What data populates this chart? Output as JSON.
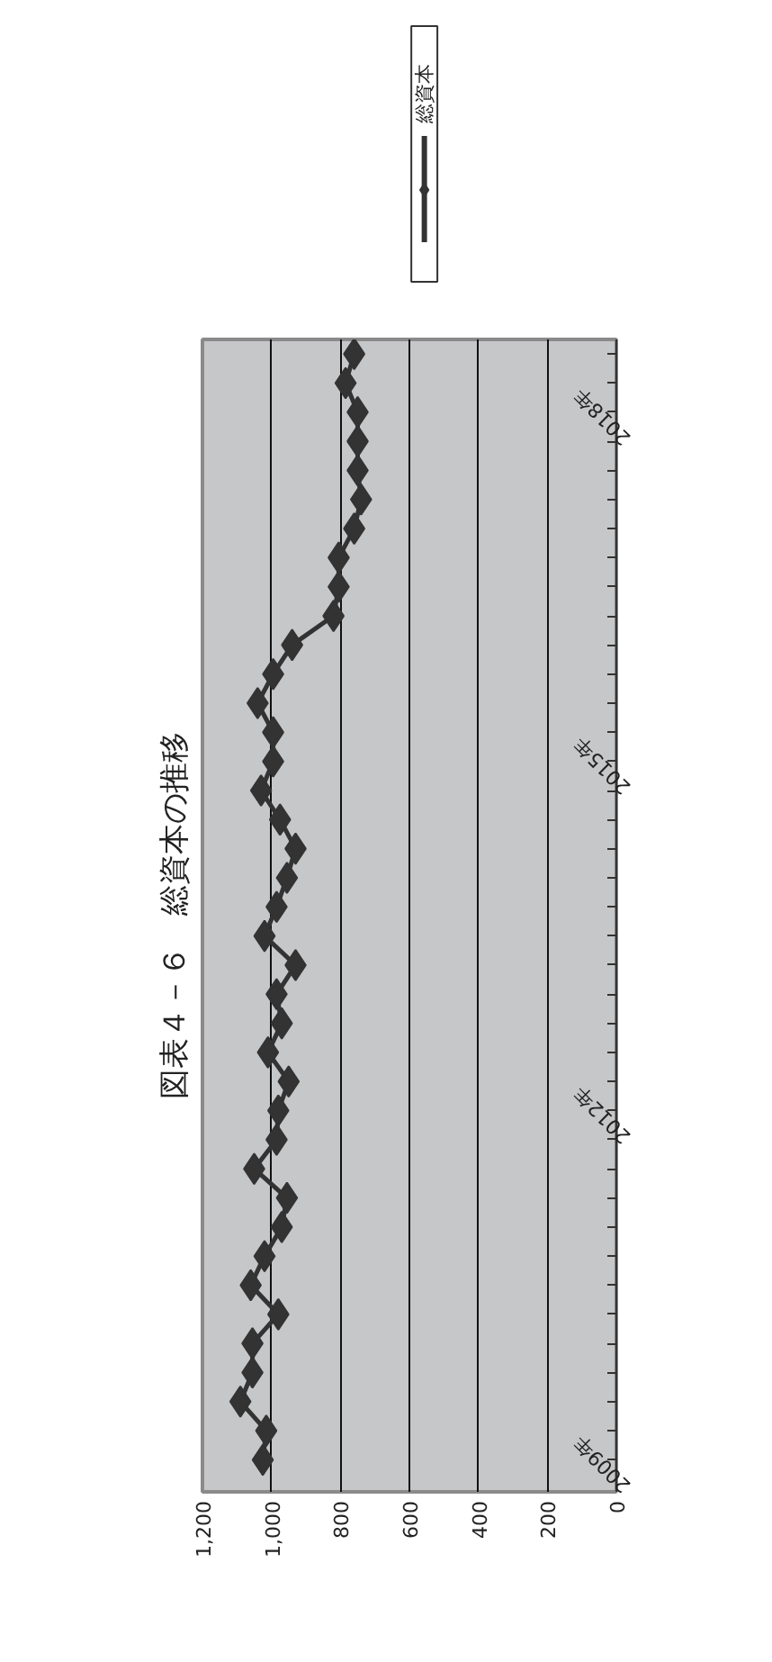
{
  "chart_data": {
    "type": "line",
    "orientation": "horizontal",
    "title": "図表４－６　総資本の推移",
    "categories": [
      null,
      null,
      "2018年",
      null,
      null,
      null,
      null,
      null,
      null,
      null,
      null,
      null,
      null,
      null,
      "2015年",
      null,
      null,
      null,
      null,
      null,
      null,
      null,
      null,
      null,
      null,
      null,
      "2012年",
      null,
      null,
      null,
      null,
      null,
      null,
      null,
      null,
      null,
      null,
      null,
      "2009年"
    ],
    "series": [
      {
        "name": "総資本",
        "color": "#333333",
        "values": [
          760,
          785,
          750,
          750,
          750,
          740,
          760,
          805,
          805,
          820,
          940,
          995,
          1040,
          995,
          995,
          1030,
          975,
          930,
          955,
          985,
          1020,
          930,
          985,
          970,
          1010,
          950,
          980,
          985,
          1050,
          955,
          970,
          1020,
          1060,
          980,
          1055,
          1055,
          1090,
          1015,
          1025
        ]
      }
    ],
    "xlim": [
      1200,
      0
    ],
    "xticks": [
      {
        "value": 1200,
        "label": "1,200"
      },
      {
        "value": 1000,
        "label": "1,000"
      },
      800,
      600,
      400,
      200,
      0
    ],
    "grid": "x",
    "legend": "top",
    "marker": "diamond",
    "line_style": "solid"
  }
}
